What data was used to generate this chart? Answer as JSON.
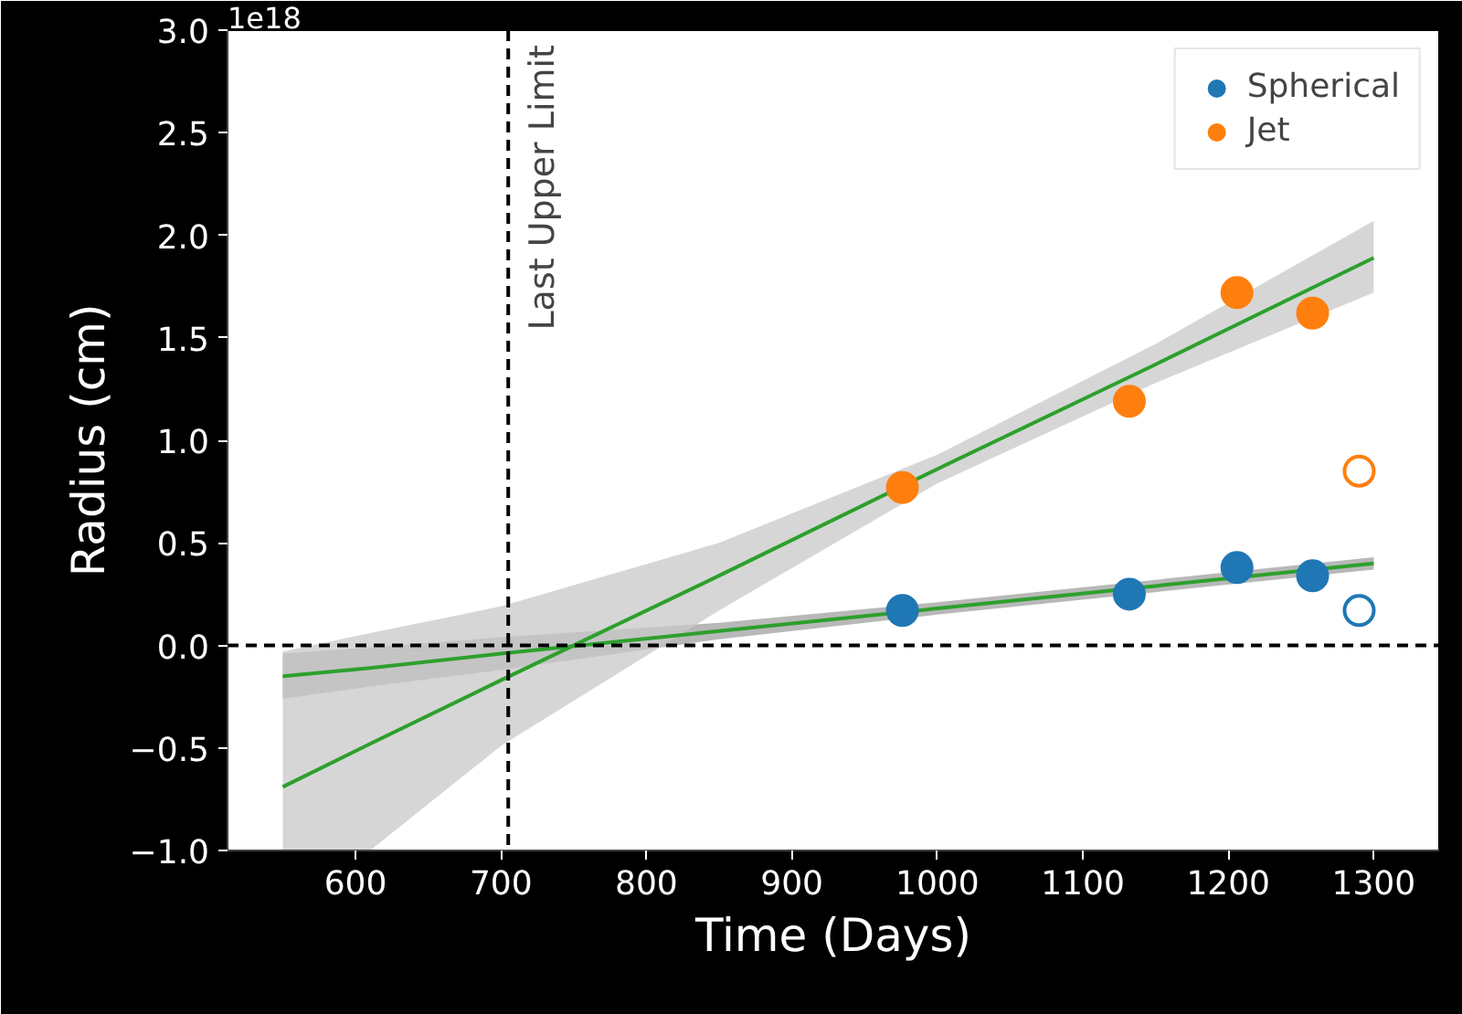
{
  "chart_data": {
    "type": "scatter",
    "xlabel": "Time (Days)",
    "ylabel": "Radius (cm)",
    "annotations": [
      "1e18"
    ],
    "xlim": [
      512,
      1345
    ],
    "ylim": [
      -1.0,
      3.0
    ],
    "xticks": [
      600,
      700,
      800,
      900,
      1000,
      1100,
      1200,
      1300
    ],
    "yticks": [
      {
        "value": -1.0,
        "label": "−1.0"
      },
      {
        "value": -0.5,
        "label": "−0.5"
      },
      {
        "value": 0.0,
        "label": "0.0"
      },
      {
        "value": 0.5,
        "label": "0.5"
      },
      {
        "value": 1.0,
        "label": "1.0"
      },
      {
        "value": 1.5,
        "label": "1.5"
      },
      {
        "value": 2.0,
        "label": "2.0"
      },
      {
        "value": 2.5,
        "label": "2.5"
      },
      {
        "value": 3.0,
        "label": "3.0"
      }
    ],
    "grid": false,
    "legend": "top right",
    "marker": "circle",
    "ref_lines": [
      {
        "axis": "x",
        "value": 705,
        "label": "Last Upper Limit",
        "color": "#000000",
        "line_style": "dashed"
      },
      {
        "axis": "y",
        "value": 0,
        "label": null,
        "color": "#000000",
        "line_style": "dashed"
      }
    ],
    "series": [
      {
        "type": "line",
        "marker": "none",
        "color": "#2ca02c",
        "x": [
          550,
          610,
          700,
          850,
          1000,
          1150,
          1300
        ],
        "values": [
          -0.15,
          -0.11,
          -0.04,
          0.07,
          0.18,
          0.29,
          0.4
        ],
        "lower": [
          -0.26,
          -0.2,
          -0.12,
          0.03,
          0.15,
          0.26,
          0.37
        ],
        "upper": [
          -0.04,
          -0.01,
          0.04,
          0.11,
          0.21,
          0.32,
          0.43
        ]
      },
      {
        "type": "line",
        "marker": "none",
        "color": "#2ca02c",
        "x": [
          550,
          610,
          700,
          850,
          1000,
          1150,
          1300
        ],
        "values": [
          -0.69,
          -0.48,
          -0.17,
          0.34,
          0.86,
          1.37,
          1.89
        ],
        "lower": [
          -1.0,
          -1.0,
          -0.49,
          0.17,
          0.79,
          1.28,
          1.72
        ],
        "upper": [
          -0.03,
          0.06,
          0.19,
          0.5,
          0.93,
          1.47,
          2.07
        ]
      },
      {
        "name": "Spherical",
        "color": "#1f77b4",
        "x": [
          976,
          1132,
          1206,
          1258
        ],
        "values": [
          0.17,
          0.25,
          0.38,
          0.34
        ]
      },
      {
        "name": "Jet",
        "color": "#ff7f0e",
        "x": [
          976,
          1132,
          1206,
          1258
        ],
        "values": [
          0.77,
          1.19,
          1.72,
          1.62
        ]
      },
      {
        "color": "#1f77b4",
        "x": [
          1290
        ],
        "values": [
          0.17
        ]
      },
      {
        "color": "#ff7f0e",
        "x": [
          1290
        ],
        "values": [
          0.85
        ]
      }
    ]
  }
}
